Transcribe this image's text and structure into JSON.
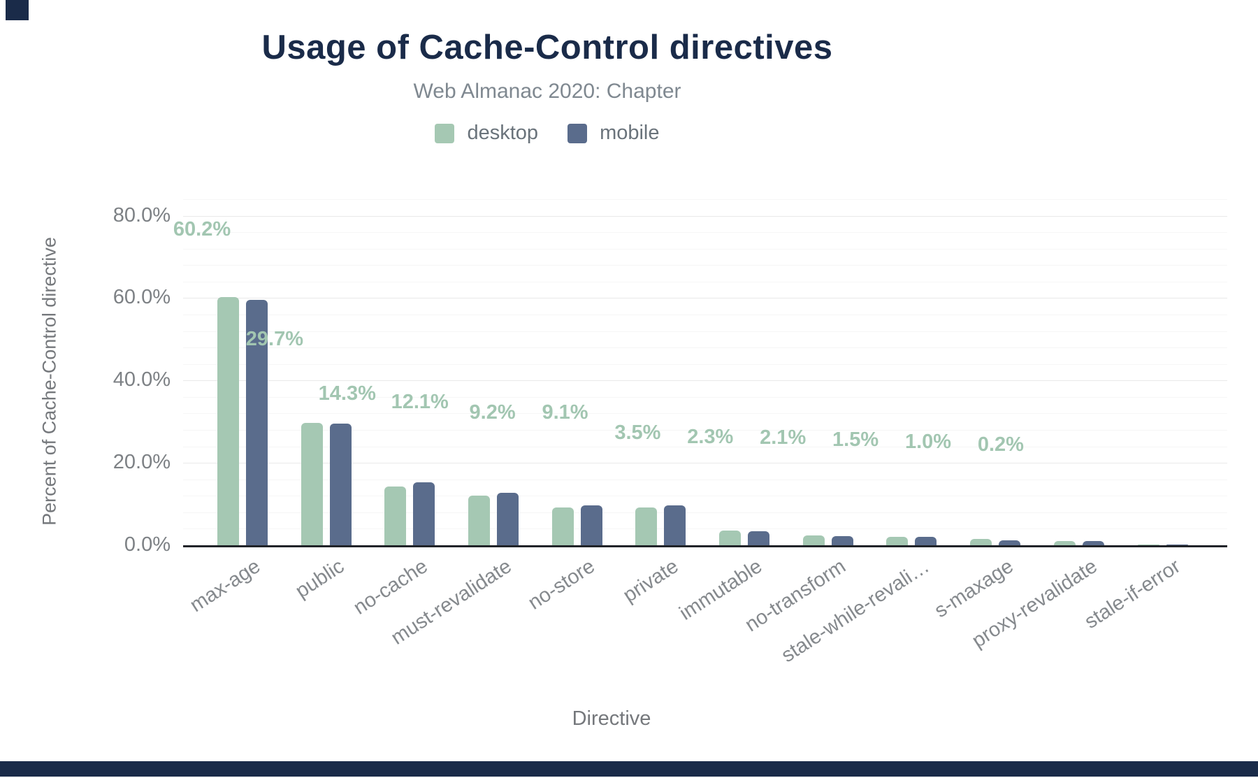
{
  "chart_data": {
    "type": "bar",
    "title": "Usage of Cache-Control directives",
    "subtitle": "Web Almanac 2020: Chapter",
    "xlabel": "Directive",
    "ylabel": "Percent of Cache-Control directive",
    "ylim": [
      0,
      84
    ],
    "grid": true,
    "legend_position": "top",
    "y_ticks": [
      {
        "value": 0,
        "label": "0.0%"
      },
      {
        "value": 20,
        "label": "20.0%"
      },
      {
        "value": 40,
        "label": "40.0%"
      },
      {
        "value": 60,
        "label": "60.0%"
      },
      {
        "value": 80,
        "label": "80.0%"
      }
    ],
    "y_minor_step": 4,
    "categories": [
      "max-age",
      "public",
      "no-cache",
      "must-revalidate",
      "no-store",
      "private",
      "immutable",
      "no-transform",
      "stale-while-revalidate",
      "s-maxage",
      "proxy-revalidate",
      "stale-if-error"
    ],
    "x_tick_labels": [
      "max-age",
      "public",
      "no-cache",
      "must-revalidate",
      "no-store",
      "private",
      "immutable",
      "no-transform",
      "stale-while-revali…",
      "s-maxage",
      "proxy-revalidate",
      "stale-if-error"
    ],
    "series": [
      {
        "name": "desktop",
        "color": "#a5c8b3",
        "values": [
          60.2,
          29.7,
          14.3,
          12.1,
          9.2,
          9.1,
          3.5,
          2.3,
          2.1,
          1.5,
          1.0,
          0.2
        ]
      },
      {
        "name": "mobile",
        "color": "#5a6c8c",
        "values": [
          59.6,
          29.6,
          15.3,
          12.7,
          9.6,
          9.7,
          3.4,
          2.2,
          2.0,
          1.2,
          1.1,
          0.2
        ]
      }
    ],
    "data_labels": [
      "60.2%",
      "29.7%",
      "14.3%",
      "12.1%",
      "9.2%",
      "9.1%",
      "3.5%",
      "2.3%",
      "2.1%",
      "1.5%",
      "1.0%",
      "0.2%"
    ]
  },
  "colors": {
    "title": "#1a2b49",
    "subtitle": "#7f8890",
    "desktop": "#a5c8b3",
    "mobile": "#5a6c8c",
    "data_label": "#a2c6b1",
    "accent_bar": "#1a2b49"
  }
}
